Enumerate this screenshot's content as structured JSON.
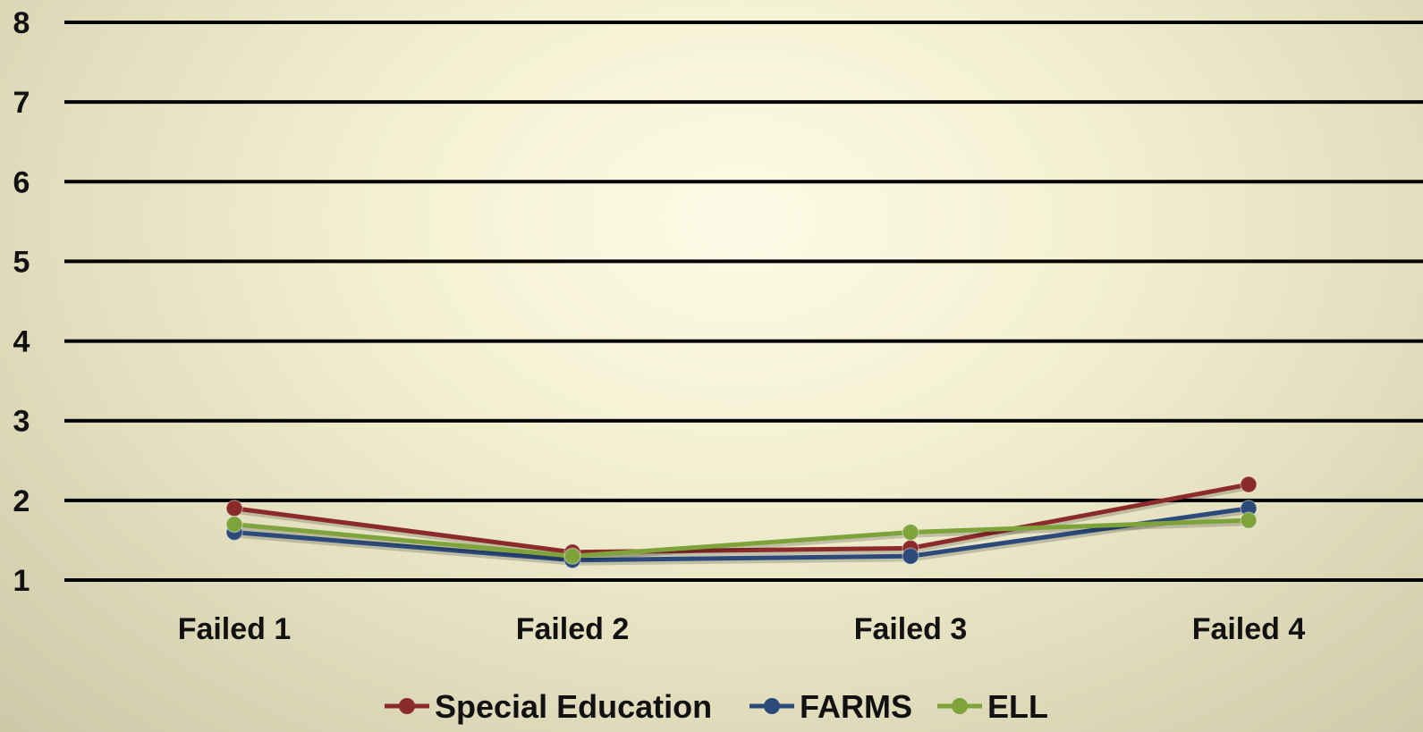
{
  "chart_data": {
    "type": "line",
    "title": "",
    "xlabel": "",
    "ylabel": "",
    "categories": [
      "Failed 1",
      "Failed 2",
      "Failed 3",
      "Failed 4"
    ],
    "ylim": [
      1,
      8
    ],
    "yticks": [
      1,
      2,
      3,
      4,
      5,
      6,
      7,
      8
    ],
    "grid": true,
    "legend_position": "bottom",
    "series": [
      {
        "name": "Special Education",
        "color": "#8b2a2a",
        "values": [
          1.9,
          1.35,
          1.4,
          2.2
        ]
      },
      {
        "name": "FARMS",
        "color": "#2b4a7a",
        "values": [
          1.6,
          1.25,
          1.3,
          1.9
        ]
      },
      {
        "name": "ELL",
        "color": "#7da33a",
        "values": [
          1.7,
          1.3,
          1.6,
          1.75
        ]
      }
    ]
  }
}
